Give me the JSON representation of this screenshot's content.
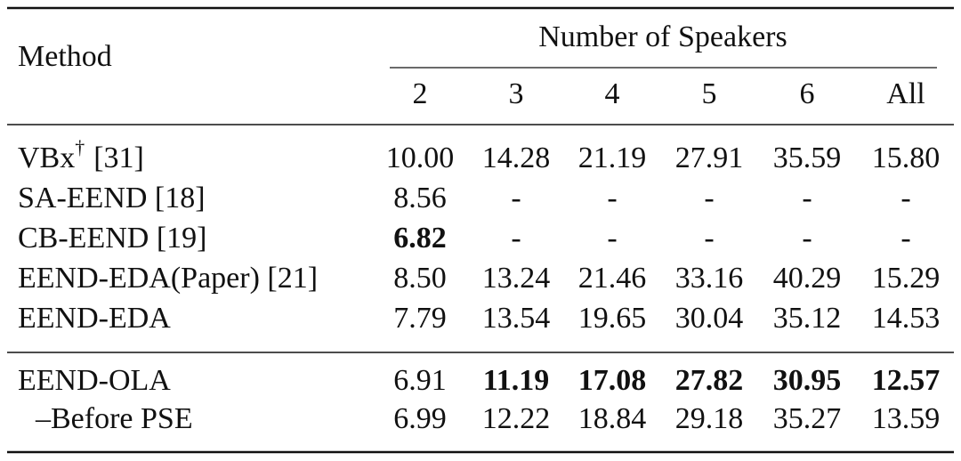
{
  "table": {
    "header": {
      "method": "Method",
      "group": "Number of Speakers",
      "columns": [
        "2",
        "3",
        "4",
        "5",
        "6",
        "All"
      ]
    },
    "body": [
      [
        {
          "method": "VBx",
          "sup": "†",
          "ref": "[31]",
          "values": [
            "10.00",
            "14.28",
            "21.19",
            "27.91",
            "35.59",
            "15.80"
          ],
          "bold": []
        },
        {
          "method": "SA-EEND [18]",
          "values": [
            "8.56",
            "-",
            "-",
            "-",
            "-",
            "-"
          ],
          "bold": []
        },
        {
          "method": "CB-EEND [19]",
          "values": [
            "6.82",
            "-",
            "-",
            "-",
            "-",
            "-"
          ],
          "bold": [
            0
          ]
        },
        {
          "method": "EEND-EDA(Paper) [21]",
          "values": [
            "8.50",
            "13.24",
            "21.46",
            "33.16",
            "40.29",
            "15.29"
          ],
          "bold": []
        },
        {
          "method": "EEND-EDA",
          "values": [
            "7.79",
            "13.54",
            "19.65",
            "30.04",
            "35.12",
            "14.53"
          ],
          "bold": []
        }
      ],
      [
        {
          "method": "EEND-OLA",
          "values": [
            "6.91",
            "11.19",
            "17.08",
            "27.82",
            "30.95",
            "12.57"
          ],
          "bold": [
            1,
            2,
            3,
            4,
            5
          ]
        },
        {
          "method": "–Before PSE",
          "values": [
            "6.99",
            "12.22",
            "18.84",
            "29.18",
            "35.27",
            "13.59"
          ],
          "bold": []
        }
      ]
    ]
  }
}
